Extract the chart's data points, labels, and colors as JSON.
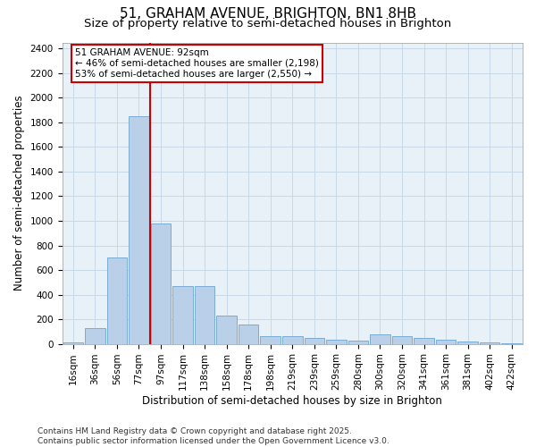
{
  "title_line1": "51, GRAHAM AVENUE, BRIGHTON, BN1 8HB",
  "title_line2": "Size of property relative to semi-detached houses in Brighton",
  "xlabel": "Distribution of semi-detached houses by size in Brighton",
  "ylabel": "Number of semi-detached properties",
  "footer_line1": "Contains HM Land Registry data © Crown copyright and database right 2025.",
  "footer_line2": "Contains public sector information licensed under the Open Government Licence v3.0.",
  "bar_labels": [
    "16sqm",
    "36sqm",
    "56sqm",
    "77sqm",
    "97sqm",
    "117sqm",
    "138sqm",
    "158sqm",
    "178sqm",
    "198sqm",
    "219sqm",
    "239sqm",
    "259sqm",
    "280sqm",
    "300sqm",
    "320sqm",
    "341sqm",
    "361sqm",
    "381sqm",
    "402sqm",
    "422sqm"
  ],
  "bar_values": [
    10,
    130,
    700,
    1850,
    980,
    470,
    470,
    230,
    155,
    60,
    65,
    50,
    35,
    25,
    80,
    60,
    50,
    30,
    20,
    10,
    5
  ],
  "bar_color": "#bad0e8",
  "bar_edge_color": "#7aadd4",
  "vline_color": "#cc0000",
  "vline_position": 3.5,
  "annotation_text": "51 GRAHAM AVENUE: 92sqm\n← 46% of semi-detached houses are smaller (2,198)\n53% of semi-detached houses are larger (2,550) →",
  "annotation_box_facecolor": "#ffffff",
  "annotation_box_edgecolor": "#cc0000",
  "ylim": [
    0,
    2450
  ],
  "yticks": [
    0,
    200,
    400,
    600,
    800,
    1000,
    1200,
    1400,
    1600,
    1800,
    2000,
    2200,
    2400
  ],
  "grid_color": "#c8d8e8",
  "bg_color": "#e8f0f8",
  "title_fontsize": 11,
  "subtitle_fontsize": 9.5,
  "axis_label_fontsize": 8.5,
  "tick_fontsize": 7.5,
  "annotation_fontsize": 7.5,
  "footer_fontsize": 6.5
}
